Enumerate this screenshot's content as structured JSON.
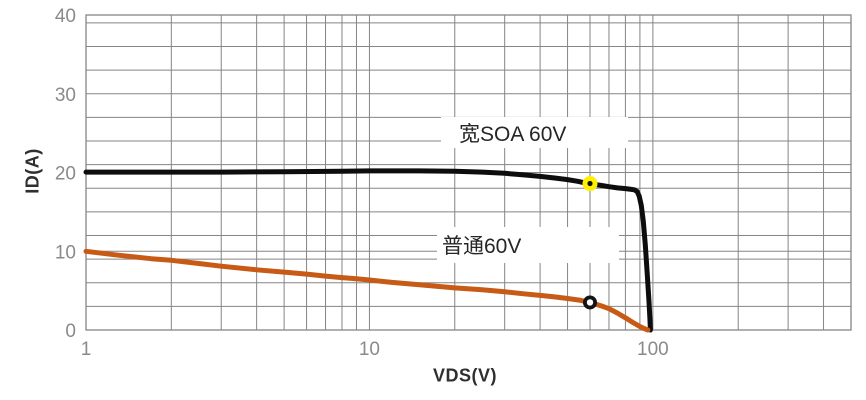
{
  "chart_data": {
    "type": "line",
    "title": "",
    "xlabel": "VDS(V)",
    "ylabel": "ID(A)",
    "x_scale": "log",
    "xlim": [
      1,
      500
    ],
    "ylim": [
      0,
      40
    ],
    "x_ticks": [
      {
        "v": 1,
        "label": "1"
      },
      {
        "v": 10,
        "label": "10"
      },
      {
        "v": 100,
        "label": "100"
      }
    ],
    "y_ticks": [
      {
        "v": 0,
        "label": "0"
      },
      {
        "v": 10,
        "label": "10"
      },
      {
        "v": 20,
        "label": "20"
      },
      {
        "v": 30,
        "label": "30"
      },
      {
        "v": 40,
        "label": "40"
      }
    ],
    "grid": {
      "on": true,
      "color": "#858585",
      "y_minor_step": 3,
      "y_major": [
        10,
        20,
        30,
        40
      ],
      "x_log_decades": [
        1,
        10,
        100
      ],
      "legend_position": "inline-annotations"
    },
    "tick_label_color": "#8a8a8a",
    "series": [
      {
        "id": "wide-soa",
        "name": "宽SOA 60V",
        "color": "#0d0d0d",
        "width": 5,
        "points": [
          [
            1,
            20.05
          ],
          [
            2,
            20.05
          ],
          [
            3,
            20.05
          ],
          [
            5,
            20.1
          ],
          [
            8,
            20.15
          ],
          [
            10,
            20.2
          ],
          [
            15,
            20.2
          ],
          [
            20,
            20.15
          ],
          [
            25,
            20.05
          ],
          [
            30,
            19.9
          ],
          [
            35,
            19.7
          ],
          [
            40,
            19.5
          ],
          [
            45,
            19.3
          ],
          [
            50,
            19.1
          ],
          [
            54,
            18.9
          ],
          [
            58,
            18.65
          ],
          [
            62,
            18.5
          ],
          [
            66,
            18.35
          ],
          [
            70,
            18.2
          ],
          [
            75,
            18.05
          ],
          [
            80,
            17.95
          ],
          [
            84,
            17.85
          ],
          [
            86,
            17.8
          ],
          [
            88,
            17.6
          ],
          [
            89.5,
            17.0
          ],
          [
            91,
            15.8
          ],
          [
            92.5,
            13.8
          ],
          [
            94,
            10.8
          ],
          [
            95.5,
            7.2
          ],
          [
            96.8,
            3.8
          ],
          [
            97.6,
            1.5
          ],
          [
            98,
            0
          ]
        ]
      },
      {
        "id": "normal",
        "name": "普通60V",
        "color": "#c75a15",
        "width": 5,
        "points": [
          [
            1,
            10
          ],
          [
            1.3,
            9.5
          ],
          [
            1.7,
            9.05
          ],
          [
            2,
            8.85
          ],
          [
            2.5,
            8.45
          ],
          [
            3,
            8.1
          ],
          [
            4,
            7.65
          ],
          [
            5,
            7.35
          ],
          [
            6,
            7.1
          ],
          [
            7,
            6.85
          ],
          [
            8,
            6.65
          ],
          [
            9,
            6.5
          ],
          [
            10,
            6.35
          ],
          [
            12,
            6.05
          ],
          [
            15,
            5.75
          ],
          [
            20,
            5.35
          ],
          [
            25,
            5.1
          ],
          [
            30,
            4.85
          ],
          [
            35,
            4.6
          ],
          [
            40,
            4.4
          ],
          [
            45,
            4.2
          ],
          [
            50,
            4.0
          ],
          [
            55,
            3.8
          ],
          [
            58,
            3.6
          ],
          [
            62,
            3.35
          ],
          [
            66,
            3.05
          ],
          [
            70,
            2.7
          ],
          [
            75,
            2.15
          ],
          [
            80,
            1.55
          ],
          [
            85,
            0.95
          ],
          [
            90,
            0.45
          ],
          [
            93,
            0.2
          ],
          [
            96,
            0
          ]
        ]
      }
    ],
    "markers": [
      {
        "series": "宽SOA 60V",
        "x": 60,
        "y": 18.6,
        "style": "yellow-dot",
        "outer_color": "#ffef00",
        "inner_color": "#111111",
        "r_outer": 7.5,
        "r_inner": 2.6
      },
      {
        "series": "普通60V",
        "x": 60,
        "y": 3.5,
        "style": "black-ring",
        "outer_color": "#141414",
        "inner_color": "#ffffff",
        "r_outer": 7,
        "r_inner": 3.2
      }
    ],
    "annotations": [
      {
        "text": "宽SOA 60V",
        "anchor": {
          "x": 38,
          "y": 25
        }
      },
      {
        "text": "普通60V",
        "anchor": {
          "x": 36,
          "y": 11
        }
      }
    ]
  }
}
